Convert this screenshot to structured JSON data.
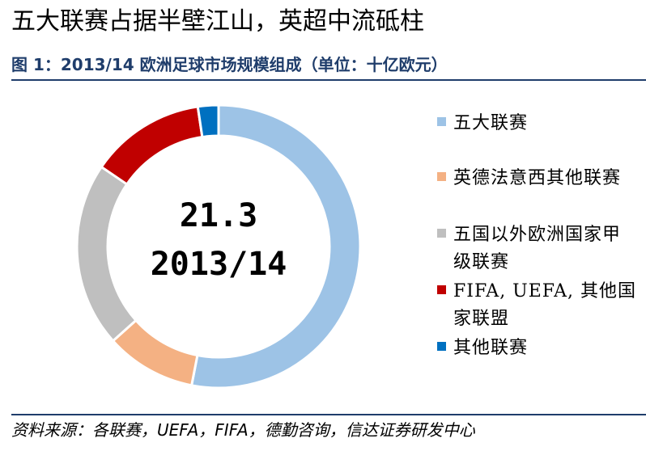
{
  "headline": "五大联赛占据半壁江山，英超中流砥柱",
  "figure_caption": "图 1：2013/14 欧洲足球市场规模组成（单位：十亿欧元）",
  "source_note": "资料来源：各联赛，UEFA，FIFA，德勤咨询，信达证券研发中心",
  "chart_data": {
    "type": "pie",
    "variant": "donut",
    "title": "",
    "center_labels": [
      "21.3",
      "2013/14"
    ],
    "total": 21.3,
    "unit": "十亿欧元",
    "legend_position": "right",
    "slices": [
      {
        "label": "五大联赛",
        "value": 11.3,
        "color": "#9dc3e6"
      },
      {
        "label": "英德法意西其他联赛",
        "value": 2.2,
        "color": "#f4b183"
      },
      {
        "label": "五国以外欧洲国家甲级联赛",
        "value": 4.5,
        "color": "#bfbfbf"
      },
      {
        "label": "FIFA, UEFA, 其他国家联盟",
        "value": 2.8,
        "color": "#c00000"
      },
      {
        "label": "其他联赛",
        "value": 0.5,
        "color": "#0070c0"
      }
    ]
  }
}
